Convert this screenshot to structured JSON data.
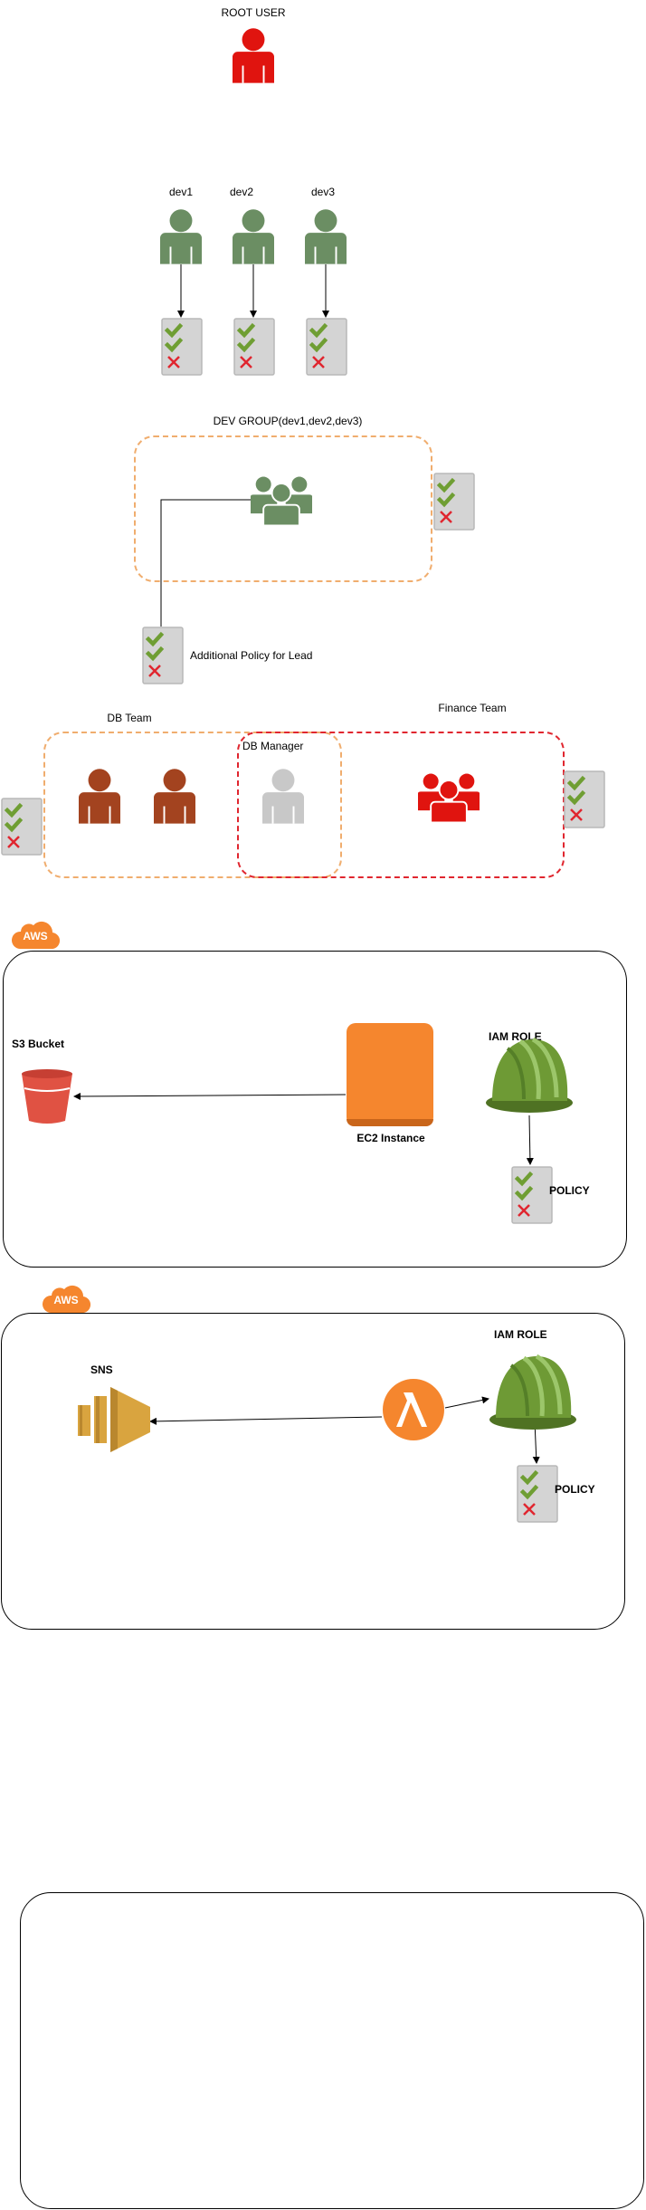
{
  "root": {
    "label": "ROOT USER"
  },
  "devs": [
    {
      "label": "dev1"
    },
    {
      "label": "dev2"
    },
    {
      "label": "dev3"
    }
  ],
  "dev_group": {
    "label": "DEV GROUP(dev1,dev2,dev3)"
  },
  "lead_policy": {
    "label": "Additional Policy for Lead"
  },
  "db_team": {
    "label": "DB Team"
  },
  "db_manager": {
    "label": "DB Manager"
  },
  "finance_team": {
    "label": "Finance Team"
  },
  "aws_section_1": {
    "badge": "AWS",
    "s3_label": "S3 Bucket",
    "ec2_label": "EC2 Instance",
    "iam_label": "IAM ROLE",
    "policy_label": "POLICY"
  },
  "aws_section_2": {
    "badge": "AWS",
    "sns_label": "SNS",
    "iam_label": "IAM ROLE",
    "policy_label": "POLICY"
  },
  "colors": {
    "user_green": "#6b8e63",
    "user_red": "#e0140f",
    "user_brown": "#a3431f",
    "user_grey": "#c8c8c8",
    "aws_orange": "#f5862e",
    "helmet_green": "#6e9a35",
    "s3_red": "#e05243",
    "sns_gold": "#d9a43f",
    "check_green": "#6f9e33",
    "cross_red": "#e0262f"
  }
}
